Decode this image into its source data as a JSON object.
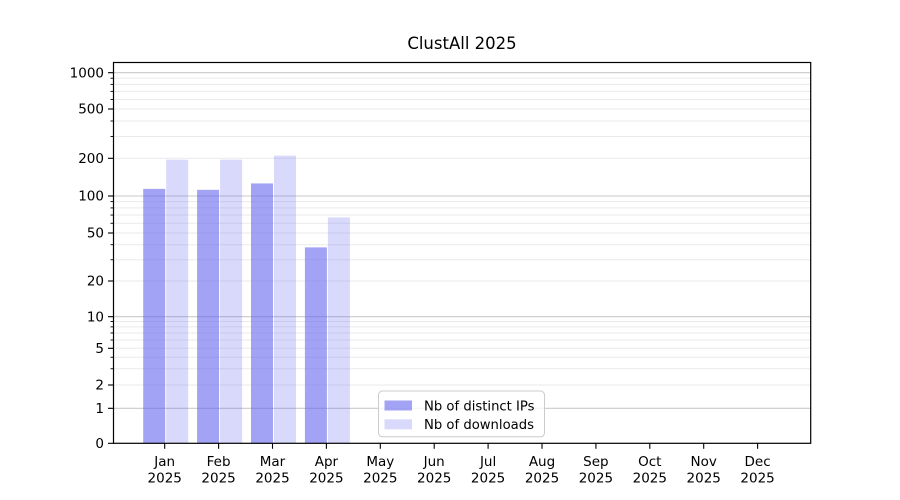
{
  "chart_data": {
    "type": "bar",
    "title": "ClustAll 2025",
    "months": [
      "Jan",
      "Feb",
      "Mar",
      "Apr",
      "May",
      "Jun",
      "Jul",
      "Aug",
      "Sep",
      "Oct",
      "Nov",
      "Dec"
    ],
    "year_label": "2025",
    "series": [
      {
        "name": "Nb of distinct IPs",
        "color": "rgba(102,102,240,0.6)",
        "values": [
          114,
          112,
          126,
          38,
          0,
          0,
          0,
          0,
          0,
          0,
          0,
          0
        ]
      },
      {
        "name": "Nb of downloads",
        "color": "rgba(102,102,240,0.25)",
        "values": [
          195,
          195,
          210,
          67,
          0,
          0,
          0,
          0,
          0,
          0,
          0,
          0
        ]
      }
    ],
    "y_axis": {
      "ticks": [
        0,
        1,
        2,
        5,
        10,
        20,
        50,
        100,
        200,
        500,
        1000
      ],
      "scale": "log-with-zero",
      "major_grid_values": [
        1,
        10,
        100,
        1000
      ]
    },
    "grid": {
      "on": true,
      "major_color": "#c9c9c9",
      "minor_color": "#eaeaea"
    },
    "legend": {
      "position": "lower-center",
      "border_color": "#cccccc",
      "background": "rgba(255,255,255,0.8)"
    },
    "bar_base_color": "#6666f0",
    "axis_color": "#000000"
  }
}
